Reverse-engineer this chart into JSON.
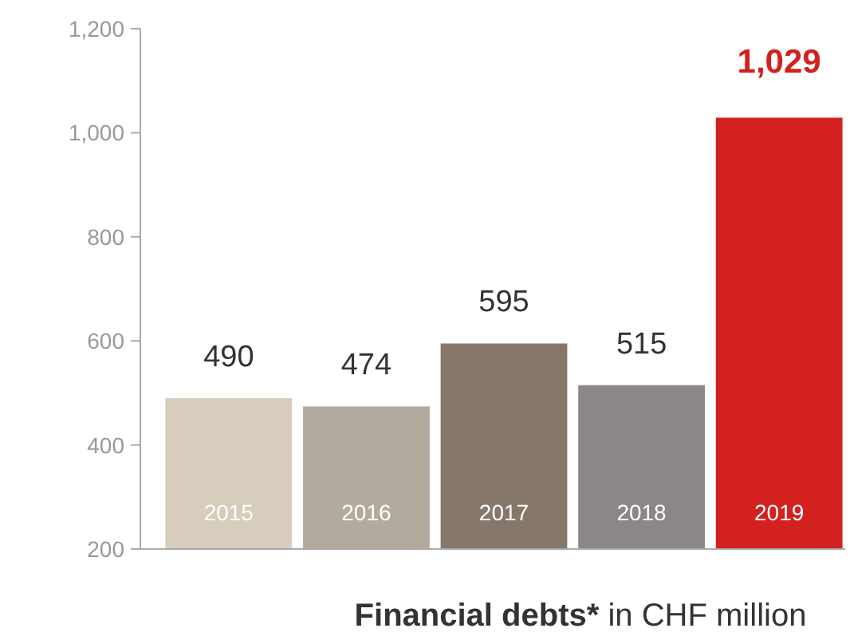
{
  "chart_data": {
    "type": "bar",
    "title": "Financial debts*",
    "subtitle": "in CHF million",
    "categories": [
      "2015",
      "2016",
      "2017",
      "2018",
      "2019"
    ],
    "values": [
      490,
      474,
      595,
      515,
      1029
    ],
    "colors": [
      "#d6cdbc",
      "#b3aa9f",
      "#85786a",
      "#8c8589",
      "#d2211f"
    ],
    "ylim": [
      200,
      1200
    ],
    "yticks": [
      {
        "value": 200,
        "label": "200"
      },
      {
        "value": 400,
        "label": "400"
      },
      {
        "value": 600,
        "label": "600"
      },
      {
        "value": 800,
        "label": "800"
      },
      {
        "value": 1000,
        "label": "1,000"
      },
      {
        "value": 1200,
        "label": "1,200"
      }
    ],
    "value_labels": [
      "490",
      "474",
      "595",
      "515",
      "1,029"
    ]
  }
}
